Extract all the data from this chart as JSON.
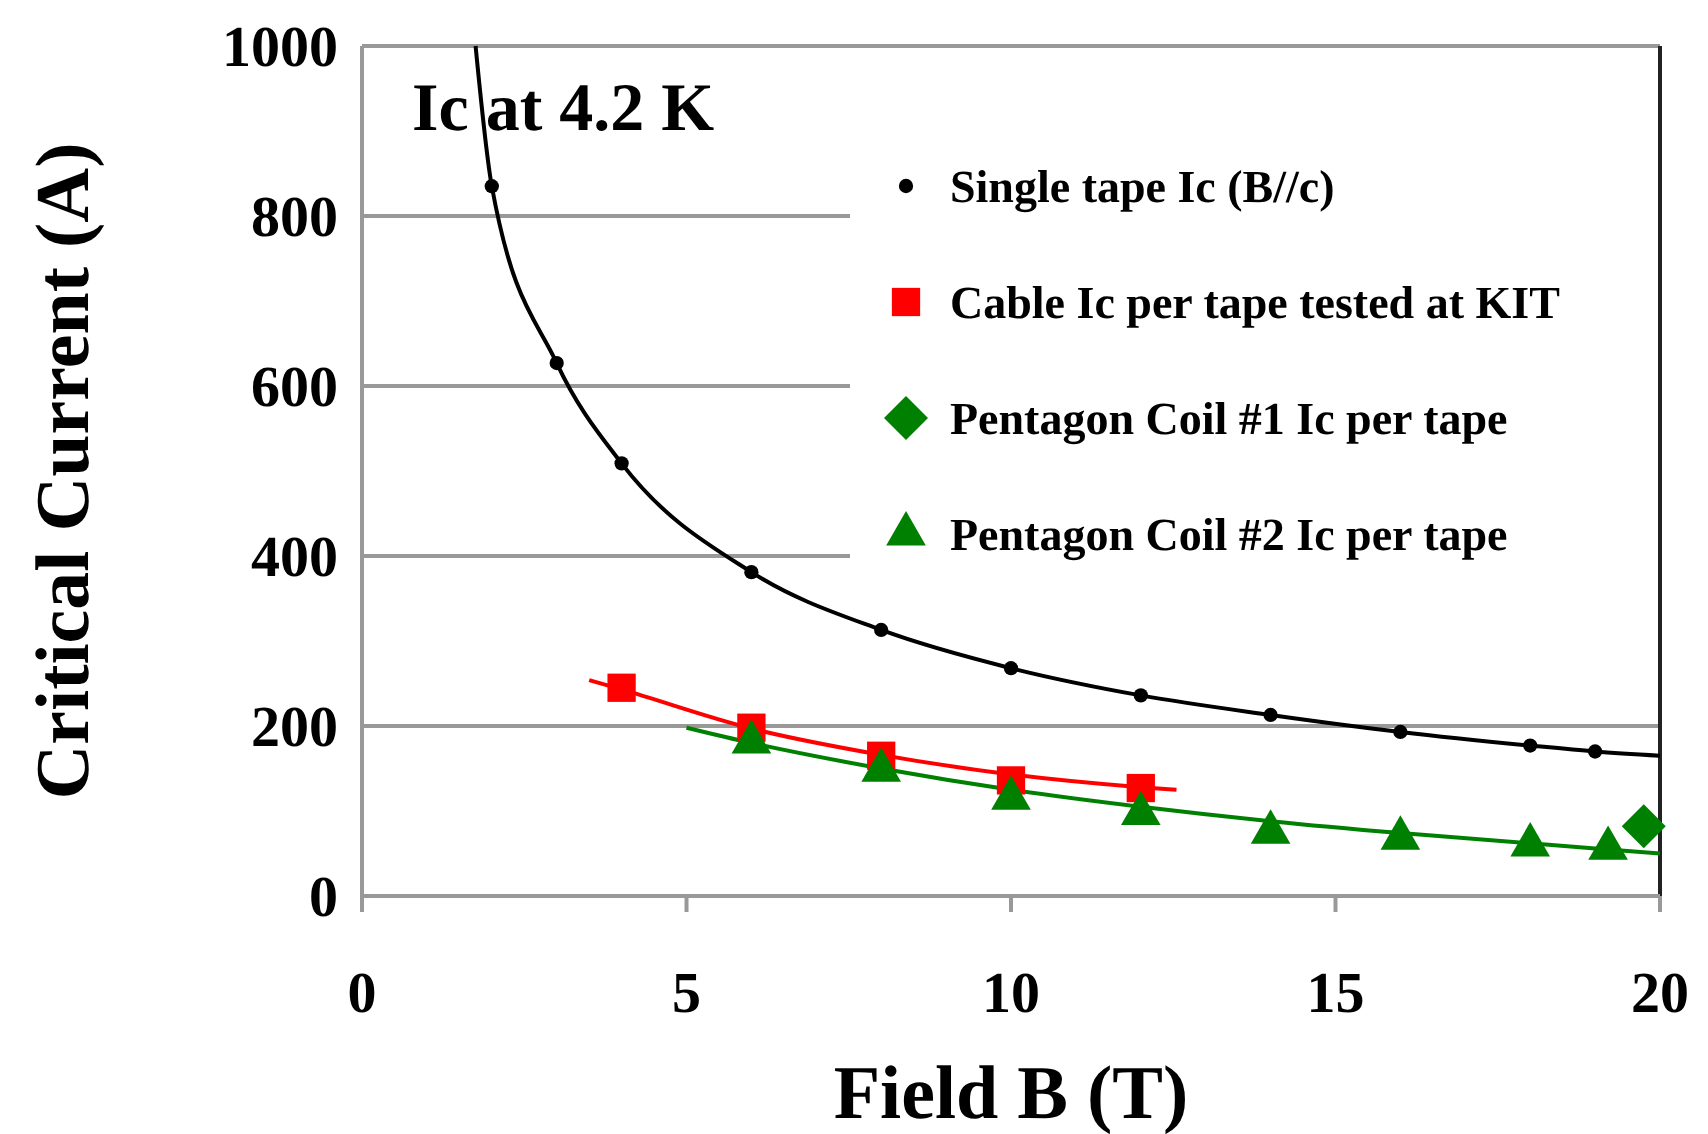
{
  "chart_data": {
    "type": "scatter",
    "xlabel": "Field  B (T)",
    "ylabel": "Critical Current  (A)",
    "annotations": [
      "Ic at 4.2 K"
    ],
    "xlim": [
      0,
      20
    ],
    "xticks": [
      0,
      5,
      10,
      15,
      20
    ],
    "ylim": [
      0,
      1000
    ],
    "yticks": [
      0,
      200,
      400,
      600,
      800,
      1000
    ],
    "grid": "y",
    "legend": "top right",
    "series": [
      {
        "type": "line",
        "color": "#000000",
        "marker": "none",
        "x": [
          1.75,
          2,
          3,
          4,
          6,
          8,
          10,
          12,
          14,
          16,
          18,
          19,
          20
        ],
        "values": [
          1000,
          835,
          627,
          509,
          381,
          313,
          268,
          236,
          213,
          193,
          177,
          170,
          165
        ]
      },
      {
        "type": "line",
        "color": "#ff0000",
        "marker": "none",
        "x": [
          3.5,
          4,
          6,
          8,
          10,
          12,
          12.55
        ],
        "values": [
          254,
          243,
          197,
          166,
          143,
          128,
          125
        ]
      },
      {
        "type": "line",
        "color": "#008000",
        "marker": "none",
        "x": [
          5,
          6,
          8,
          10,
          12,
          14,
          16,
          18,
          20
        ],
        "values": [
          198,
          180,
          150,
          125,
          105,
          88,
          74,
          62,
          50
        ]
      },
      {
        "name": "Single tape Ic (B//c)",
        "color": "#000000",
        "marker": "circle",
        "x": [
          2,
          3,
          4,
          6,
          8,
          10,
          12,
          14,
          16,
          18,
          19
        ],
        "values": [
          835,
          627,
          509,
          381,
          313,
          268,
          236,
          213,
          193,
          177,
          170
        ]
      },
      {
        "name": "Cable Ic per tape tested at KIT",
        "color": "#ff0000",
        "marker": "square",
        "x": [
          4,
          6,
          8,
          10,
          12
        ],
        "values": [
          245,
          198,
          165,
          136,
          127
        ]
      },
      {
        "name": "Pentagon Coil #1 Ic per tape",
        "color": "#008000",
        "marker": "diamond",
        "x": [
          19.75
        ],
        "values": [
          82
        ]
      },
      {
        "name": "Pentagon Coil #2 Ic per tape",
        "color": "#008000",
        "marker": "triangle",
        "x": [
          6,
          8,
          10,
          12,
          14,
          16,
          18,
          19.2
        ],
        "values": [
          181,
          148,
          115,
          97,
          75,
          68,
          60,
          56
        ]
      }
    ]
  }
}
